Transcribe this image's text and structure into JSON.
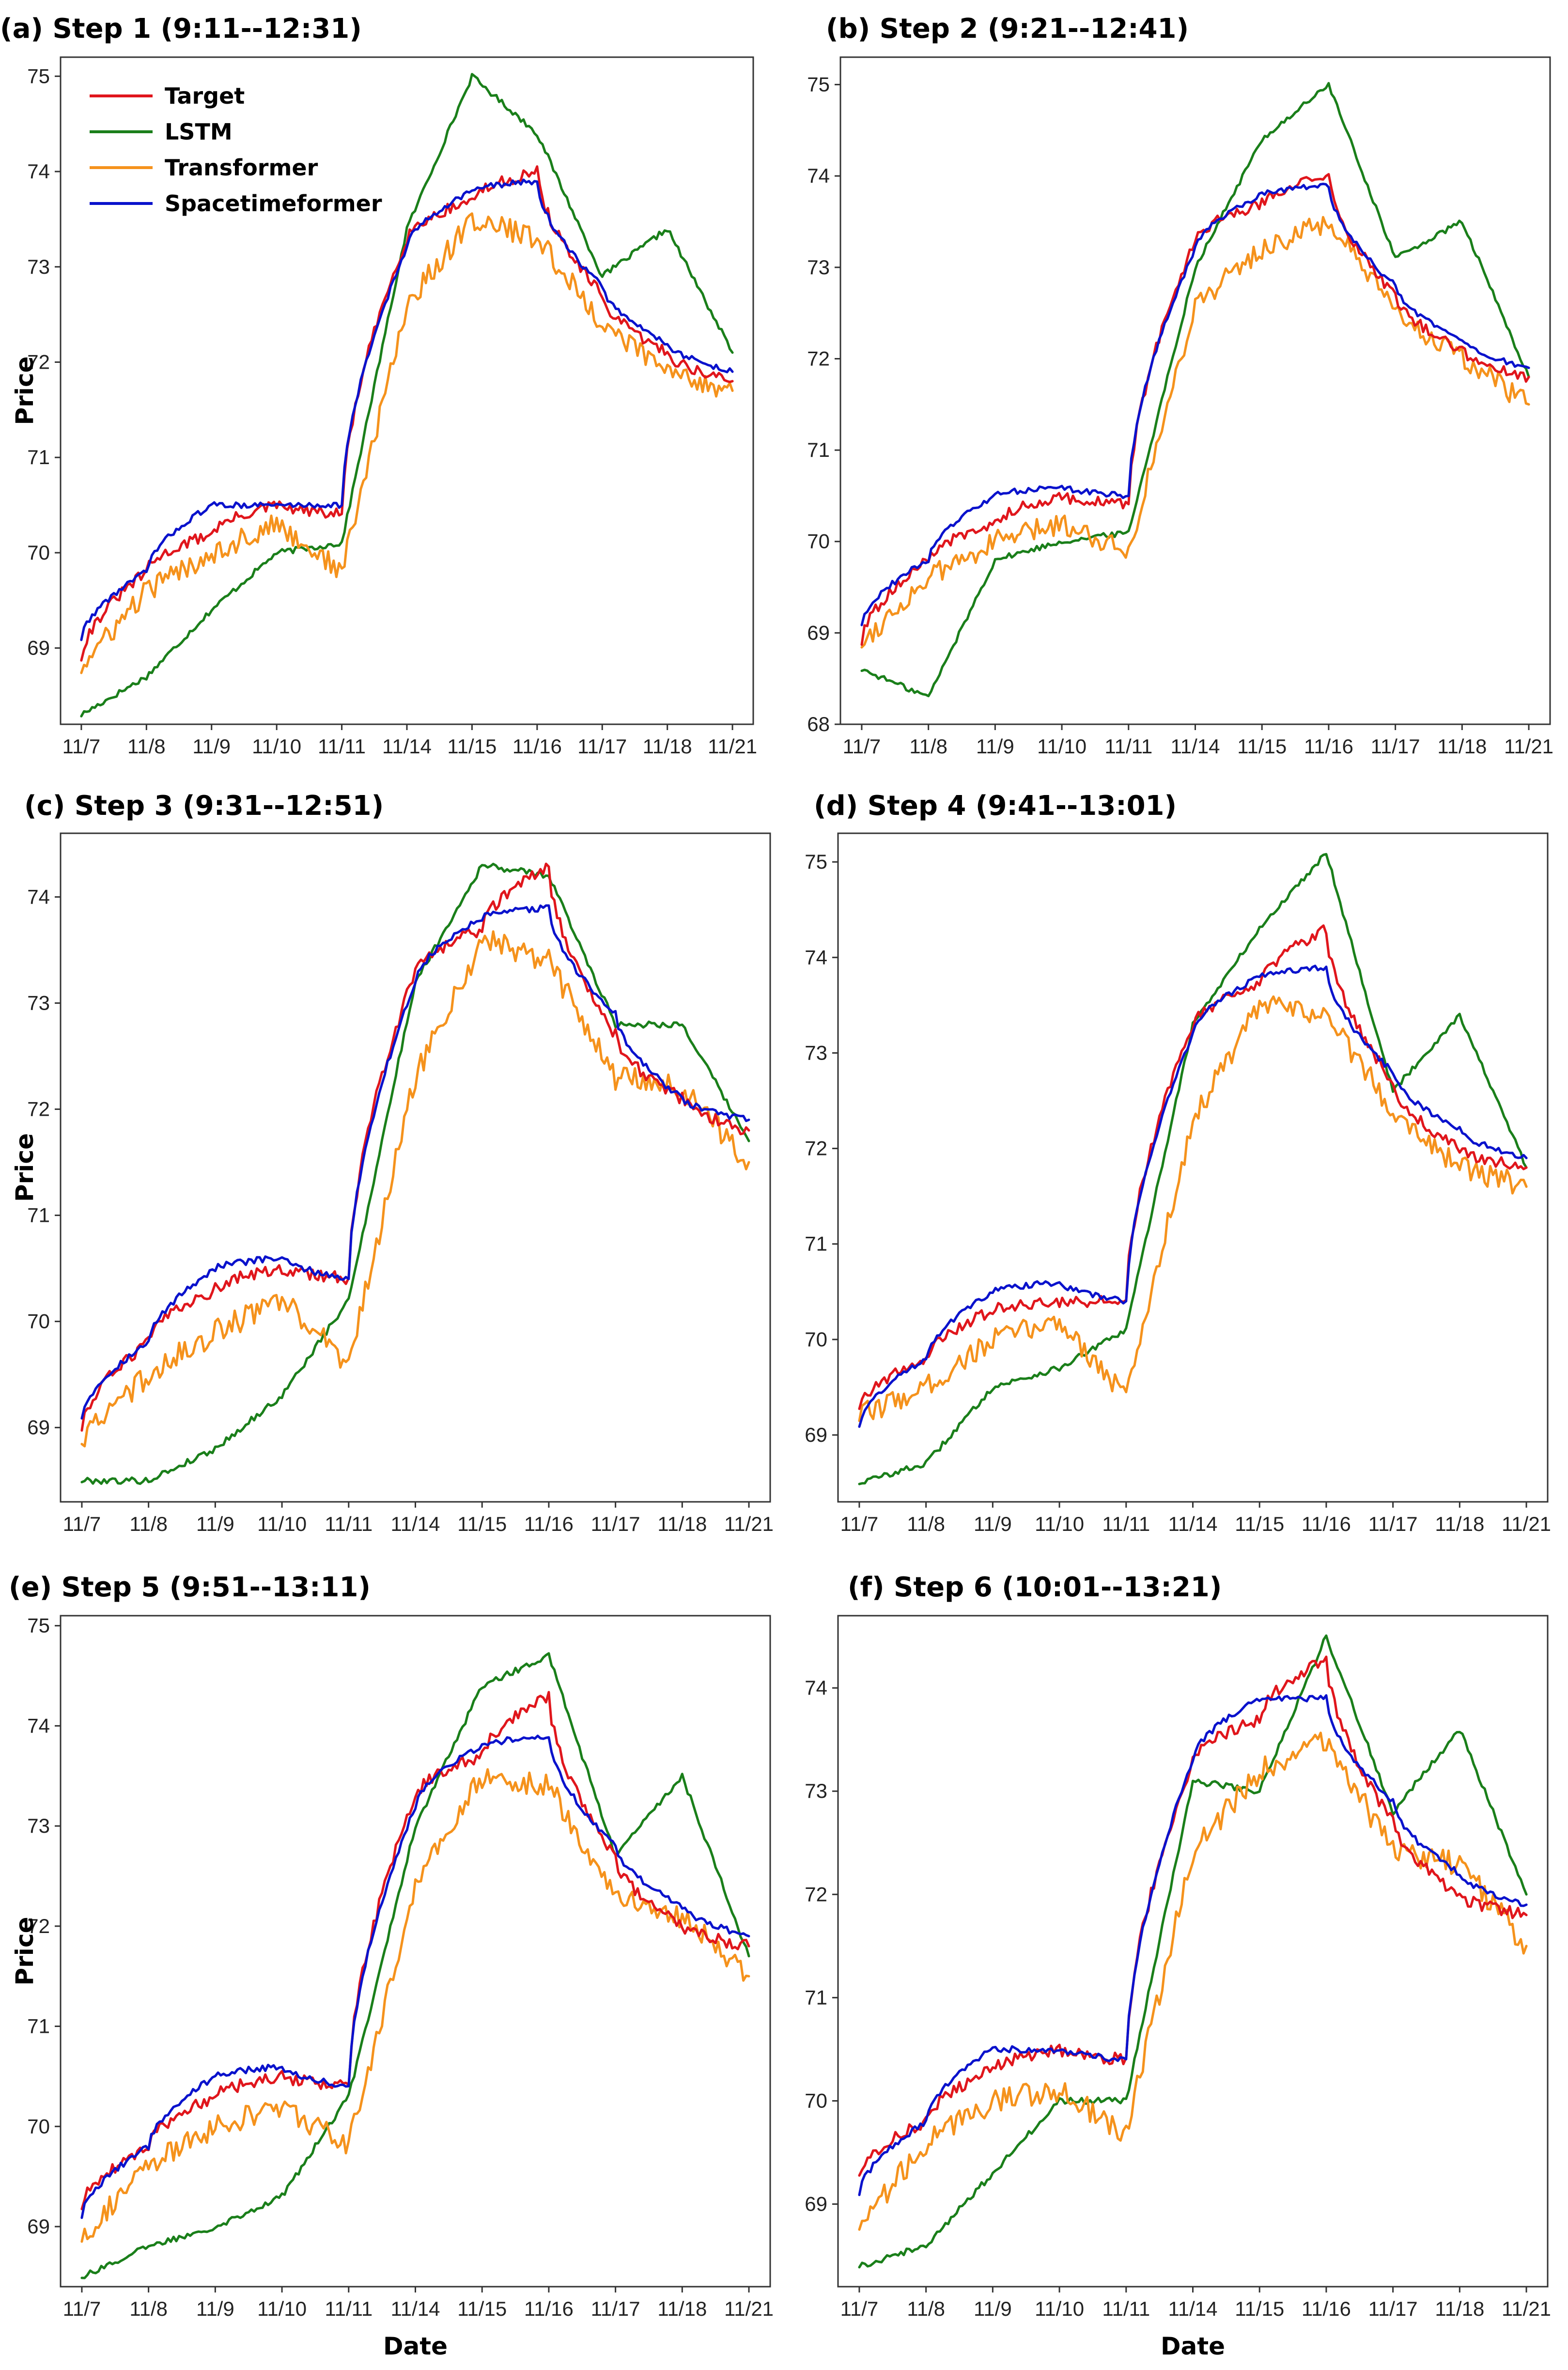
{
  "figure": {
    "x_axis_title": "Date",
    "y_axis_title": "Price",
    "colors": {
      "Target": "#e0161c",
      "LSTM": "#1a7f1a",
      "Transformer": "#f5921c",
      "Spacetimeformer": "#0a12cc"
    }
  },
  "chart_data": [
    {
      "type": "line",
      "title": "(a)  Step 1 (9:11--12:31)",
      "xlabel": "",
      "ylabel": "Price",
      "categories": [
        "11/7",
        "11/8",
        "11/9",
        "11/10",
        "11/11",
        "11/14",
        "11/15",
        "11/16",
        "11/17",
        "11/18",
        "11/21"
      ],
      "yticks": [
        69,
        70,
        71,
        72,
        73,
        74,
        75
      ],
      "ylim": [
        68.2,
        75.2
      ],
      "legend": {
        "location": "top-left",
        "entries": [
          "Target",
          "LSTM",
          "Transformer",
          "Spacetimeformer"
        ]
      },
      "series": [
        {
          "name": "Target",
          "values": [
            68.9,
            69.8,
            70.2,
            70.5,
            70.4,
            73.3,
            73.7,
            74.0,
            72.7,
            72.1,
            71.8
          ]
        },
        {
          "name": "LSTM",
          "values": [
            68.3,
            68.7,
            69.4,
            70.0,
            70.1,
            73.4,
            75.0,
            74.4,
            72.9,
            73.4,
            72.1
          ]
        },
        {
          "name": "Transformer",
          "values": [
            68.8,
            69.6,
            70.0,
            70.3,
            69.8,
            72.6,
            73.5,
            73.3,
            72.4,
            71.9,
            71.7
          ]
        },
        {
          "name": "Spacetimeformer",
          "values": [
            69.1,
            69.8,
            70.5,
            70.5,
            70.5,
            73.2,
            73.8,
            73.9,
            72.8,
            72.2,
            71.9
          ]
        }
      ]
    },
    {
      "type": "line",
      "title": "(b) Step 2 (9:21--12:41)",
      "xlabel": "",
      "ylabel": "",
      "categories": [
        "11/7",
        "11/8",
        "11/9",
        "11/10",
        "11/11",
        "11/14",
        "11/15",
        "11/16",
        "11/17",
        "11/18",
        "11/21"
      ],
      "yticks": [
        68,
        69,
        70,
        71,
        72,
        73,
        74,
        75
      ],
      "ylim": [
        68.0,
        75.3
      ],
      "legend": null,
      "series": [
        {
          "name": "Target",
          "values": [
            68.9,
            69.8,
            70.2,
            70.5,
            70.4,
            73.3,
            73.7,
            74.0,
            72.7,
            72.1,
            71.8
          ]
        },
        {
          "name": "LSTM",
          "values": [
            68.6,
            68.3,
            69.8,
            70.0,
            70.1,
            73.0,
            74.4,
            75.0,
            73.1,
            73.5,
            71.8
          ]
        },
        {
          "name": "Transformer",
          "values": [
            68.9,
            69.6,
            70.0,
            70.2,
            69.9,
            72.6,
            73.2,
            73.5,
            72.5,
            72.0,
            71.5
          ]
        },
        {
          "name": "Spacetimeformer",
          "values": [
            69.1,
            69.8,
            70.5,
            70.6,
            70.5,
            73.2,
            73.8,
            73.9,
            72.8,
            72.2,
            71.9
          ]
        }
      ]
    },
    {
      "type": "line",
      "title": "(c) Step 3 (9:31--12:51)",
      "xlabel": "",
      "ylabel": "Price",
      "categories": [
        "11/7",
        "11/8",
        "11/9",
        "11/10",
        "11/11",
        "11/14",
        "11/15",
        "11/16",
        "11/17",
        "11/18",
        "11/21"
      ],
      "yticks": [
        69,
        70,
        71,
        72,
        73,
        74
      ],
      "ylim": [
        68.3,
        74.6
      ],
      "legend": null,
      "series": [
        {
          "name": "Target",
          "values": [
            69.0,
            69.8,
            70.3,
            70.5,
            70.4,
            73.3,
            73.7,
            74.3,
            72.7,
            72.1,
            71.8
          ]
        },
        {
          "name": "LSTM",
          "values": [
            68.5,
            68.5,
            68.8,
            69.3,
            70.2,
            73.2,
            74.3,
            74.2,
            72.8,
            72.8,
            71.7
          ]
        },
        {
          "name": "Transformer",
          "values": [
            68.9,
            69.5,
            69.9,
            70.2,
            69.6,
            72.3,
            73.6,
            73.4,
            72.3,
            72.2,
            71.5
          ]
        },
        {
          "name": "Spacetimeformer",
          "values": [
            69.1,
            69.8,
            70.5,
            70.6,
            70.4,
            73.2,
            73.8,
            73.9,
            72.9,
            72.1,
            71.9
          ]
        }
      ]
    },
    {
      "type": "line",
      "title": "(d) Step 4 (9:41--13:01)",
      "xlabel": "",
      "ylabel": "",
      "categories": [
        "11/7",
        "11/8",
        "11/9",
        "11/10",
        "11/11",
        "11/14",
        "11/15",
        "11/16",
        "11/17",
        "11/18",
        "11/21"
      ],
      "yticks": [
        69,
        70,
        71,
        72,
        73,
        74,
        75
      ],
      "ylim": [
        68.3,
        75.3
      ],
      "legend": null,
      "series": [
        {
          "name": "Target",
          "values": [
            69.3,
            69.8,
            70.3,
            70.4,
            70.4,
            73.3,
            73.7,
            74.3,
            72.7,
            72.0,
            71.8
          ]
        },
        {
          "name": "LSTM",
          "values": [
            68.5,
            68.7,
            69.5,
            69.7,
            70.1,
            73.3,
            74.3,
            75.1,
            72.6,
            73.4,
            71.8
          ]
        },
        {
          "name": "Transformer",
          "values": [
            69.2,
            69.5,
            70.0,
            70.2,
            69.4,
            72.3,
            73.5,
            73.4,
            72.4,
            71.8,
            71.6
          ]
        },
        {
          "name": "Spacetimeformer",
          "values": [
            69.1,
            69.8,
            70.5,
            70.6,
            70.4,
            73.2,
            73.8,
            73.9,
            72.8,
            72.2,
            71.9
          ]
        }
      ]
    },
    {
      "type": "line",
      "title": "(e) Step 5 (9:51--13:11)",
      "xlabel": "Date",
      "ylabel": "Price",
      "categories": [
        "11/7",
        "11/8",
        "11/9",
        "11/10",
        "11/11",
        "11/14",
        "11/15",
        "11/16",
        "11/17",
        "11/18",
        "11/21"
      ],
      "yticks": [
        69,
        70,
        71,
        72,
        73,
        74,
        75
      ],
      "ylim": [
        68.4,
        75.1
      ],
      "legend": null,
      "series": [
        {
          "name": "Target",
          "values": [
            69.2,
            69.8,
            70.3,
            70.5,
            70.4,
            73.3,
            73.7,
            74.3,
            72.7,
            72.0,
            71.8
          ]
        },
        {
          "name": "LSTM",
          "values": [
            68.5,
            68.8,
            69.0,
            69.3,
            70.3,
            73.0,
            74.4,
            74.7,
            72.7,
            73.5,
            71.7
          ]
        },
        {
          "name": "Transformer",
          "values": [
            68.9,
            69.6,
            70.0,
            70.2,
            69.8,
            72.4,
            73.5,
            73.4,
            72.3,
            72.1,
            71.5
          ]
        },
        {
          "name": "Spacetimeformer",
          "values": [
            69.1,
            69.8,
            70.5,
            70.6,
            70.4,
            73.2,
            73.8,
            73.9,
            72.8,
            72.2,
            71.9
          ]
        }
      ]
    },
    {
      "type": "line",
      "title": "(f) Step 6 (10:01--13:21)",
      "xlabel": "Date",
      "ylabel": "",
      "categories": [
        "11/7",
        "11/8",
        "11/9",
        "11/10",
        "11/11",
        "11/14",
        "11/15",
        "11/16",
        "11/17",
        "11/18",
        "11/21"
      ],
      "yticks": [
        69,
        70,
        71,
        72,
        73,
        74
      ],
      "ylim": [
        68.2,
        74.7
      ],
      "legend": null,
      "series": [
        {
          "name": "Target",
          "values": [
            69.3,
            69.8,
            70.3,
            70.5,
            70.4,
            73.3,
            73.7,
            74.3,
            72.7,
            72.0,
            71.8
          ]
        },
        {
          "name": "LSTM",
          "values": [
            68.4,
            68.6,
            69.3,
            70.0,
            70.0,
            73.1,
            73.0,
            74.5,
            72.8,
            73.6,
            72.0
          ]
        },
        {
          "name": "Transformer",
          "values": [
            68.8,
            69.6,
            70.0,
            70.1,
            69.7,
            72.4,
            73.2,
            73.5,
            72.4,
            72.3,
            71.5
          ]
        },
        {
          "name": "Spacetimeformer",
          "values": [
            69.1,
            69.8,
            70.5,
            70.5,
            70.4,
            73.3,
            73.9,
            73.9,
            72.9,
            72.2,
            71.9
          ]
        }
      ]
    }
  ]
}
